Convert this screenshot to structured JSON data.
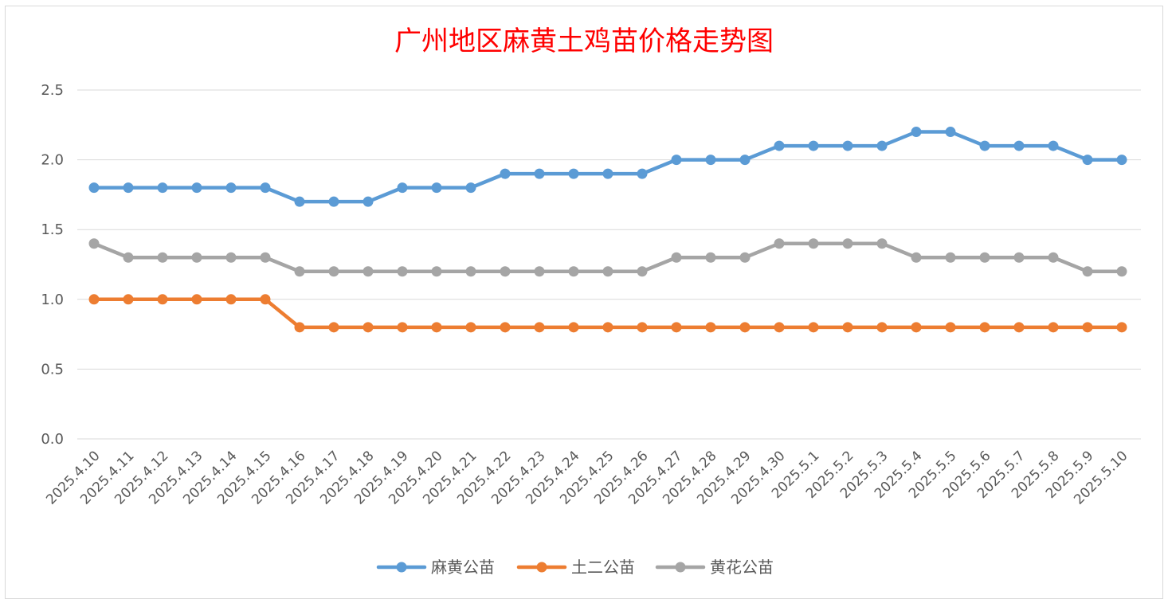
{
  "chart_data": {
    "type": "line",
    "title": "广州地区麻黄土鸡苗价格走势图",
    "xlabel": "",
    "ylabel": "",
    "ylim": [
      0,
      2.5
    ],
    "ytick_step": 0.5,
    "ytick_labels": [
      "0.0",
      "0.5",
      "1.0",
      "1.5",
      "2.0",
      "2.5"
    ],
    "grid": true,
    "legend_position": "bottom",
    "categories": [
      "2025.4.10",
      "2025.4.11",
      "2025.4.12",
      "2025.4.13",
      "2025.4.14",
      "2025.4.15",
      "2025.4.16",
      "2025.4.17",
      "2025.4.18",
      "2025.4.19",
      "2025.4.20",
      "2025.4.21",
      "2025.4.22",
      "2025.4.23",
      "2025.4.24",
      "2025.4.25",
      "2025.4.26",
      "2025.4.27",
      "2025.4.28",
      "2025.4.29",
      "2025.4.30",
      "2025.5.1",
      "2025.5.2",
      "2025.5.3",
      "2025.5.4",
      "2025.5.5",
      "2025.5.6",
      "2025.5.7",
      "2025.5.8",
      "2025.5.9",
      "2025.5.10"
    ],
    "series": [
      {
        "name": "麻黄公苗",
        "color": "#5b9bd5",
        "values": [
          1.8,
          1.8,
          1.8,
          1.8,
          1.8,
          1.8,
          1.7,
          1.7,
          1.7,
          1.8,
          1.8,
          1.8,
          1.9,
          1.9,
          1.9,
          1.9,
          1.9,
          2.0,
          2.0,
          2.0,
          2.1,
          2.1,
          2.1,
          2.1,
          2.2,
          2.2,
          2.1,
          2.1,
          2.1,
          2.0,
          2.0
        ]
      },
      {
        "name": "土二公苗",
        "color": "#ed7d31",
        "values": [
          1.0,
          1.0,
          1.0,
          1.0,
          1.0,
          1.0,
          0.8,
          0.8,
          0.8,
          0.8,
          0.8,
          0.8,
          0.8,
          0.8,
          0.8,
          0.8,
          0.8,
          0.8,
          0.8,
          0.8,
          0.8,
          0.8,
          0.8,
          0.8,
          0.8,
          0.8,
          0.8,
          0.8,
          0.8,
          0.8,
          0.8
        ]
      },
      {
        "name": "黄花公苗",
        "color": "#a5a5a5",
        "values": [
          1.4,
          1.3,
          1.3,
          1.3,
          1.3,
          1.3,
          1.2,
          1.2,
          1.2,
          1.2,
          1.2,
          1.2,
          1.2,
          1.2,
          1.2,
          1.2,
          1.2,
          1.3,
          1.3,
          1.3,
          1.4,
          1.4,
          1.4,
          1.4,
          1.3,
          1.3,
          1.3,
          1.3,
          1.3,
          1.2,
          1.2
        ]
      }
    ]
  }
}
